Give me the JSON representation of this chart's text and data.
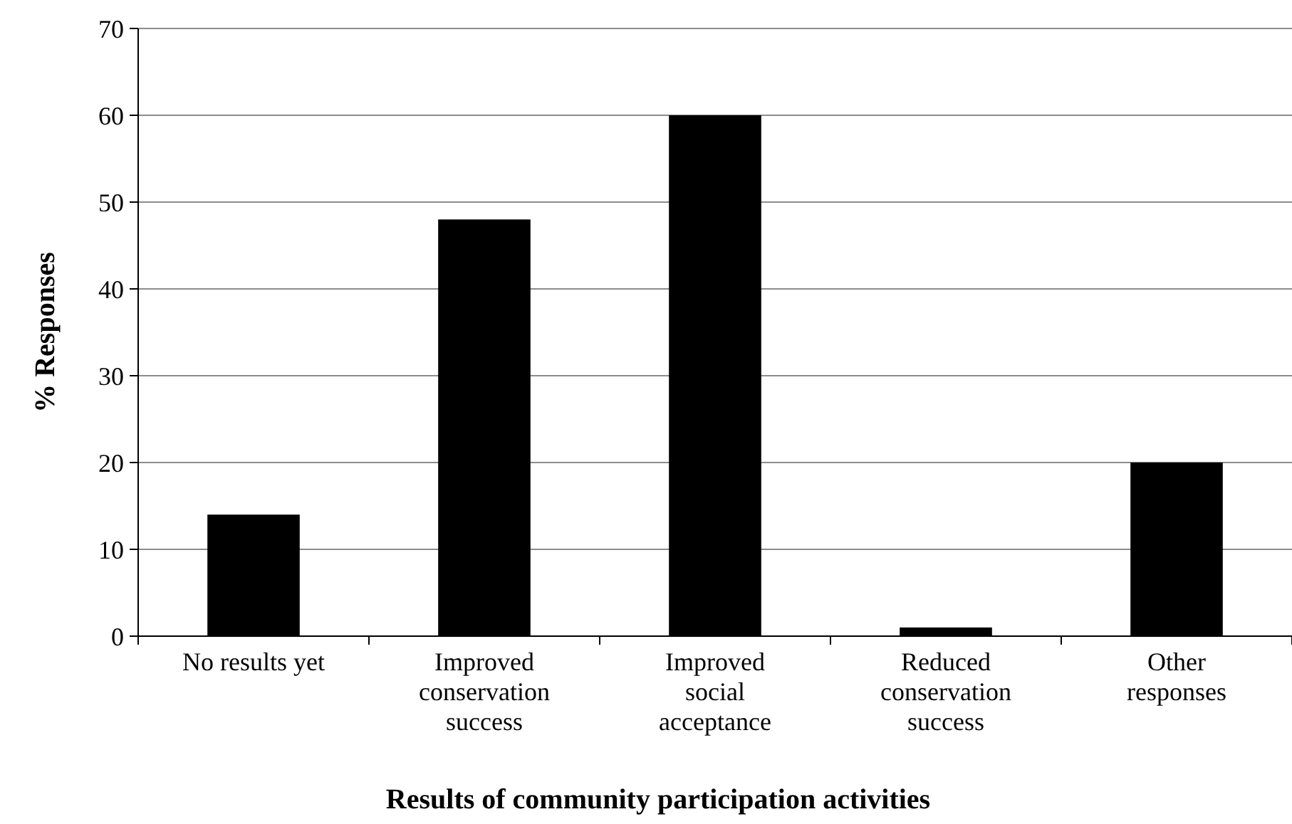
{
  "chart_data": {
    "type": "bar",
    "xlabel": "Results of community participation activities",
    "ylabel": "% Responses",
    "categories": [
      "No results yet",
      "Improved conservation success",
      "Improved social acceptance",
      "Reduced conservation success",
      "Other responses"
    ],
    "values": [
      14,
      48,
      60,
      1,
      20
    ],
    "color": "#000000",
    "ylim": [
      0,
      70
    ],
    "yticks": [
      0,
      10,
      20,
      30,
      40,
      50,
      60,
      70
    ],
    "grid": "y"
  }
}
